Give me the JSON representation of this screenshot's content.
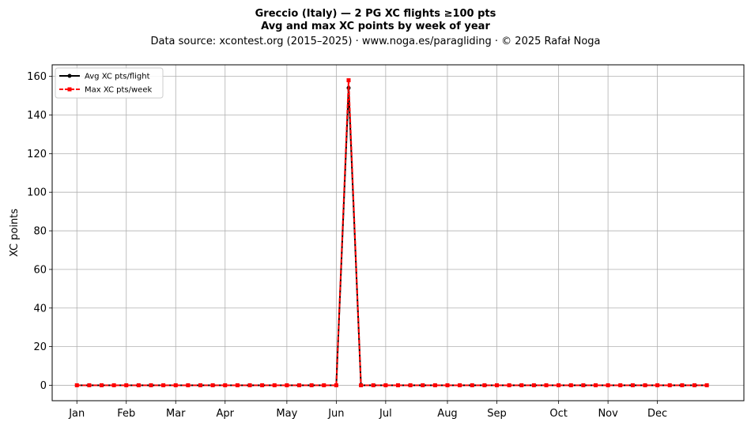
{
  "chart_data": {
    "type": "line",
    "title": "Greccio (Italy)  —  2 PG XC flights ≥100 pts",
    "subtitle": "Avg and max XC points by week of year",
    "source": "Data source: xcontest.org (2015–2025)  ·  www.noga.es/paragliding  ·  © 2025 Rafał Noga",
    "xlabel": "",
    "ylabel": "XC points",
    "xlim": [
      -2,
      54
    ],
    "ylim": [
      -8,
      166
    ],
    "grid": true,
    "legend_position": "top-left",
    "x_ticks": [
      {
        "label": "Jan",
        "week": 0
      },
      {
        "label": "Feb",
        "week": 4
      },
      {
        "label": "Mar",
        "week": 8
      },
      {
        "label": "Apr",
        "week": 12
      },
      {
        "label": "May",
        "week": 17
      },
      {
        "label": "Jun",
        "week": 21
      },
      {
        "label": "Jul",
        "week": 25
      },
      {
        "label": "Aug",
        "week": 30
      },
      {
        "label": "Sep",
        "week": 34
      },
      {
        "label": "Oct",
        "week": 39
      },
      {
        "label": "Nov",
        "week": 43
      },
      {
        "label": "Dec",
        "week": 47
      }
    ],
    "y_ticks": [
      0,
      20,
      40,
      60,
      80,
      100,
      120,
      140,
      160
    ],
    "x": [
      0,
      1,
      2,
      3,
      4,
      5,
      6,
      7,
      8,
      9,
      10,
      11,
      12,
      13,
      14,
      15,
      16,
      17,
      18,
      19,
      20,
      21,
      22,
      23,
      24,
      25,
      26,
      27,
      28,
      29,
      30,
      31,
      32,
      33,
      34,
      35,
      36,
      37,
      38,
      39,
      40,
      41,
      42,
      43,
      44,
      45,
      46,
      47,
      48,
      49,
      50,
      51
    ],
    "series": [
      {
        "name": "Avg XC pts/flight",
        "color": "#000000",
        "marker": "circle",
        "linestyle": "solid",
        "values": [
          0,
          0,
          0,
          0,
          0,
          0,
          0,
          0,
          0,
          0,
          0,
          0,
          0,
          0,
          0,
          0,
          0,
          0,
          0,
          0,
          0,
          0,
          154,
          0,
          0,
          0,
          0,
          0,
          0,
          0,
          0,
          0,
          0,
          0,
          0,
          0,
          0,
          0,
          0,
          0,
          0,
          0,
          0,
          0,
          0,
          0,
          0,
          0,
          0,
          0,
          0,
          0
        ]
      },
      {
        "name": "Max XC pts/week",
        "color": "#ff0000",
        "marker": "square",
        "linestyle": "dashed",
        "values": [
          0,
          0,
          0,
          0,
          0,
          0,
          0,
          0,
          0,
          0,
          0,
          0,
          0,
          0,
          0,
          0,
          0,
          0,
          0,
          0,
          0,
          0,
          158,
          0,
          0,
          0,
          0,
          0,
          0,
          0,
          0,
          0,
          0,
          0,
          0,
          0,
          0,
          0,
          0,
          0,
          0,
          0,
          0,
          0,
          0,
          0,
          0,
          0,
          0,
          0,
          0,
          0
        ]
      }
    ]
  }
}
